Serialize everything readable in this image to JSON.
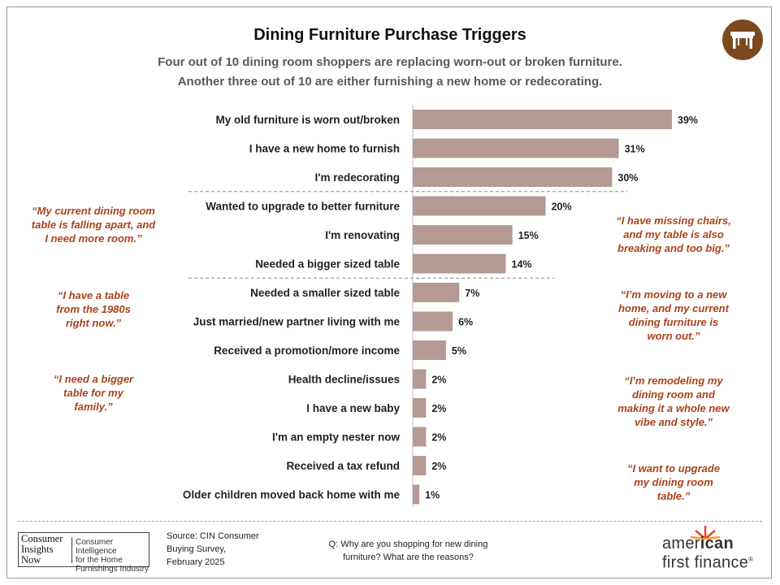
{
  "title": "Dining Furniture Purchase Triggers",
  "subtitle": [
    "Four out of 10 dining room shoppers are replacing worn-out or broken furniture.",
    "Another three out of 10 are either furnishing a new home or redecorating."
  ],
  "icon": "dining-table-icon",
  "colors": {
    "bar": "#b49a93",
    "quote": "#a9421c",
    "icon_bg": "#7a4a1e",
    "brand_accent": "#e8462b"
  },
  "chart_data": {
    "type": "bar",
    "orientation": "horizontal",
    "categories": [
      "My old furniture is worn out/broken",
      "I have a new home to furnish",
      "I'm redecorating",
      "Wanted to upgrade to better furniture",
      "I'm renovating",
      "Needed a bigger sized table",
      "Needed a smaller sized table",
      "Just married/new partner living with me",
      "Received a promotion/more income",
      "Health decline/issues",
      "I have a new baby",
      "I'm an empty nester now",
      "Received a tax refund",
      "Older children moved back home with me"
    ],
    "values": [
      39,
      31,
      30,
      20,
      15,
      14,
      7,
      6,
      5,
      2,
      2,
      2,
      2,
      1
    ],
    "value_labels": [
      "39%",
      "31%",
      "30%",
      "20%",
      "15%",
      "14%",
      "7%",
      "6%",
      "5%",
      "2%",
      "2%",
      "2%",
      "2%",
      "1%"
    ],
    "xlim": [
      0,
      45
    ],
    "unit": "%",
    "group_separators_after_index": [
      2,
      5
    ],
    "grid": false
  },
  "quotes_left": [
    [
      "“My current dining room",
      "table is falling apart, and",
      "I need more room.”"
    ],
    [
      "“I have a table",
      "from the 1980s",
      "right now.”"
    ],
    [
      "“I need a bigger",
      "table for my",
      "family.”"
    ]
  ],
  "quotes_right": [
    [
      "“I have missing chairs,",
      "and my table is also",
      "breaking and too big.”"
    ],
    [
      "“I’m moving to a new",
      "home, and my current",
      "dining furniture is",
      "worn out.”"
    ],
    [
      "“I’m remodeling my",
      "dining room and",
      "making it a whole new",
      "vibe and style.”"
    ],
    [
      "“I want to upgrade",
      "my dining room",
      "table.”"
    ]
  ],
  "footer": {
    "logo_left": [
      "Consumer",
      "Insights",
      "Now"
    ],
    "logo_right": [
      "Consumer Intelligence",
      "for the Home",
      "Furnishings Industry"
    ],
    "source": [
      "Source: CIN Consumer",
      "Buying Survey,",
      "February 2025"
    ],
    "question": [
      "Q: Why are you shopping for new dining",
      "furniture? What are the reasons?"
    ],
    "brand_line1_a": "amer",
    "brand_line1_b": "ican",
    "brand_line2": "first finance",
    "brand_mark": "®"
  }
}
